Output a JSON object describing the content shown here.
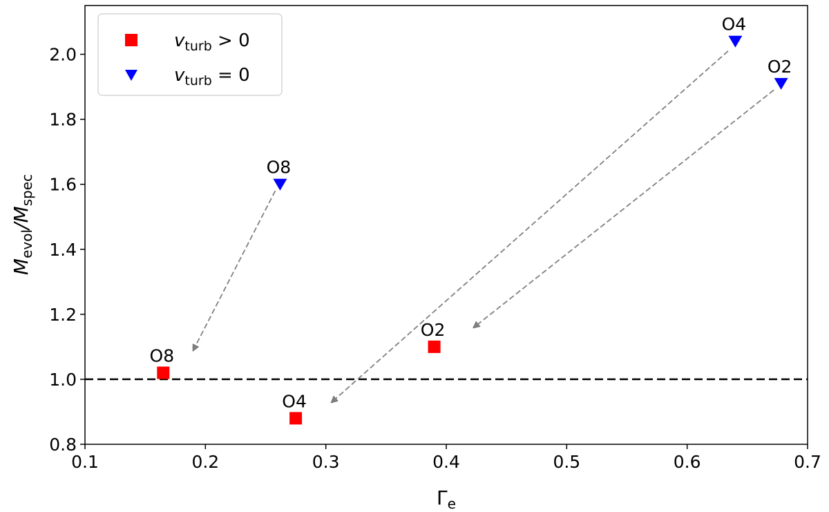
{
  "chart_data": {
    "type": "scatter",
    "xlabel": "Γ",
    "xlabel_sub": "e",
    "ylabel_parts": [
      "M",
      "evol",
      "/M",
      "spec"
    ],
    "xlim": [
      0.1,
      0.7
    ],
    "ylim": [
      0.8,
      2.15
    ],
    "xticks": [
      0.1,
      0.2,
      0.3,
      0.4,
      0.5,
      0.6,
      0.7
    ],
    "yticks": [
      0.8,
      1.0,
      1.2,
      1.4,
      1.6,
      1.8,
      2.0
    ],
    "xtick_labels": [
      "0.1",
      "0.2",
      "0.3",
      "0.4",
      "0.5",
      "0.6",
      "0.7"
    ],
    "ytick_labels": [
      "0.8",
      "1.0",
      "1.2",
      "1.4",
      "1.6",
      "1.8",
      "2.0"
    ],
    "grid": false,
    "legend_position": "top-left",
    "reference_line": {
      "y": 1.0,
      "style": "dashed",
      "color": "#000000"
    },
    "series": [
      {
        "name_parts": [
          "v",
          "turb",
          " > 0"
        ],
        "marker": "square",
        "color": "#ff0000",
        "points": [
          {
            "x": 0.165,
            "y": 1.02,
            "label": "O8"
          },
          {
            "x": 0.275,
            "y": 0.88,
            "label": "O4"
          },
          {
            "x": 0.39,
            "y": 1.1,
            "label": "O2"
          }
        ]
      },
      {
        "name_parts": [
          "v",
          "turb",
          " = 0"
        ],
        "marker": "triangle-down",
        "color": "#0000ff",
        "points": [
          {
            "x": 0.262,
            "y": 1.6,
            "label": "O8"
          },
          {
            "x": 0.64,
            "y": 2.04,
            "label": "O4"
          },
          {
            "x": 0.678,
            "y": 1.91,
            "label": "O2"
          }
        ]
      }
    ],
    "arrows": [
      {
        "from": [
          0.258,
          1.58
        ],
        "to": [
          0.19,
          1.09
        ],
        "color": "#808080",
        "style": "dashed",
        "for": "O8"
      },
      {
        "from": [
          0.634,
          2.01
        ],
        "to": [
          0.305,
          0.93
        ],
        "color": "#808080",
        "style": "dashed",
        "for": "O4"
      },
      {
        "from": [
          0.672,
          1.89
        ],
        "to": [
          0.423,
          1.16
        ],
        "color": "#808080",
        "style": "dashed",
        "for": "O2"
      }
    ]
  }
}
